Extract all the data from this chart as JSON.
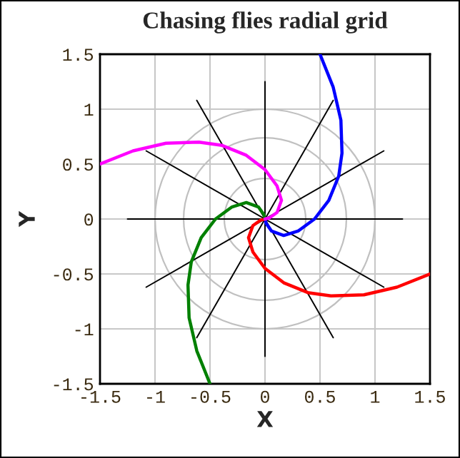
{
  "chart_data": {
    "type": "line",
    "title": "Chasing flies radial grid",
    "xlabel": "X",
    "ylabel": "Y",
    "xlim": [
      -1.5,
      1.5
    ],
    "ylim": [
      -1.5,
      1.5
    ],
    "xticks": [
      -1.5,
      -1,
      -0.5,
      0,
      0.5,
      1,
      1.5
    ],
    "yticks": [
      -1.5,
      -1,
      -0.5,
      0,
      0.5,
      1,
      1.5
    ],
    "grid": true,
    "legend": false,
    "marker": "none",
    "line_style": "solid",
    "series": [
      {
        "color": "#000000",
        "x": [
          -1.25,
          1.25
        ],
        "values": [
          0,
          0
        ]
      },
      {
        "color": "#000000",
        "x": [
          0,
          0
        ],
        "values": [
          -1.25,
          1.25
        ]
      },
      {
        "color": "#000000",
        "x": [
          -1.08,
          1.08
        ],
        "values": [
          -0.62,
          0.62
        ]
      },
      {
        "color": "#000000",
        "x": [
          -0.62,
          0.62
        ],
        "values": [
          -1.08,
          1.08
        ]
      },
      {
        "color": "#000000",
        "x": [
          -0.62,
          0.62
        ],
        "values": [
          1.08,
          -1.08
        ]
      },
      {
        "color": "#000000",
        "x": [
          -1.08,
          1.08
        ],
        "values": [
          0.62,
          -0.62
        ]
      },
      {
        "color": "#0000ff",
        "x": [
          0.5,
          0.62,
          0.69,
          0.7,
          0.67,
          0.58,
          0.45,
          0.3,
          0.17,
          0.06,
          0.01,
          0
        ],
        "values": [
          1.5,
          1.2,
          0.9,
          0.6,
          0.39,
          0.17,
          0,
          -0.11,
          -0.15,
          -0.11,
          -0.04,
          0
        ]
      },
      {
        "color": "#ff0000",
        "x": [
          1.5,
          1.2,
          0.9,
          0.6,
          0.39,
          0.17,
          0,
          -0.11,
          -0.15,
          -0.11,
          -0.04,
          0
        ],
        "values": [
          -0.5,
          -0.62,
          -0.69,
          -0.7,
          -0.67,
          -0.58,
          -0.45,
          -0.3,
          -0.17,
          -0.06,
          -0.01,
          0
        ]
      },
      {
        "color": "#008000",
        "x": [
          -0.5,
          -0.62,
          -0.69,
          -0.7,
          -0.67,
          -0.58,
          -0.45,
          -0.3,
          -0.17,
          -0.06,
          -0.01,
          0
        ],
        "values": [
          -1.5,
          -1.2,
          -0.9,
          -0.6,
          -0.39,
          -0.17,
          0,
          0.11,
          0.15,
          0.11,
          0.04,
          0
        ]
      },
      {
        "color": "#ff00ff",
        "x": [
          -1.5,
          -1.2,
          -0.9,
          -0.6,
          -0.39,
          -0.17,
          0,
          0.11,
          0.15,
          0.11,
          0.04,
          0
        ],
        "values": [
          0.5,
          0.62,
          0.69,
          0.7,
          0.67,
          0.58,
          0.45,
          0.3,
          0.17,
          0.06,
          0.01,
          0
        ]
      }
    ]
  }
}
